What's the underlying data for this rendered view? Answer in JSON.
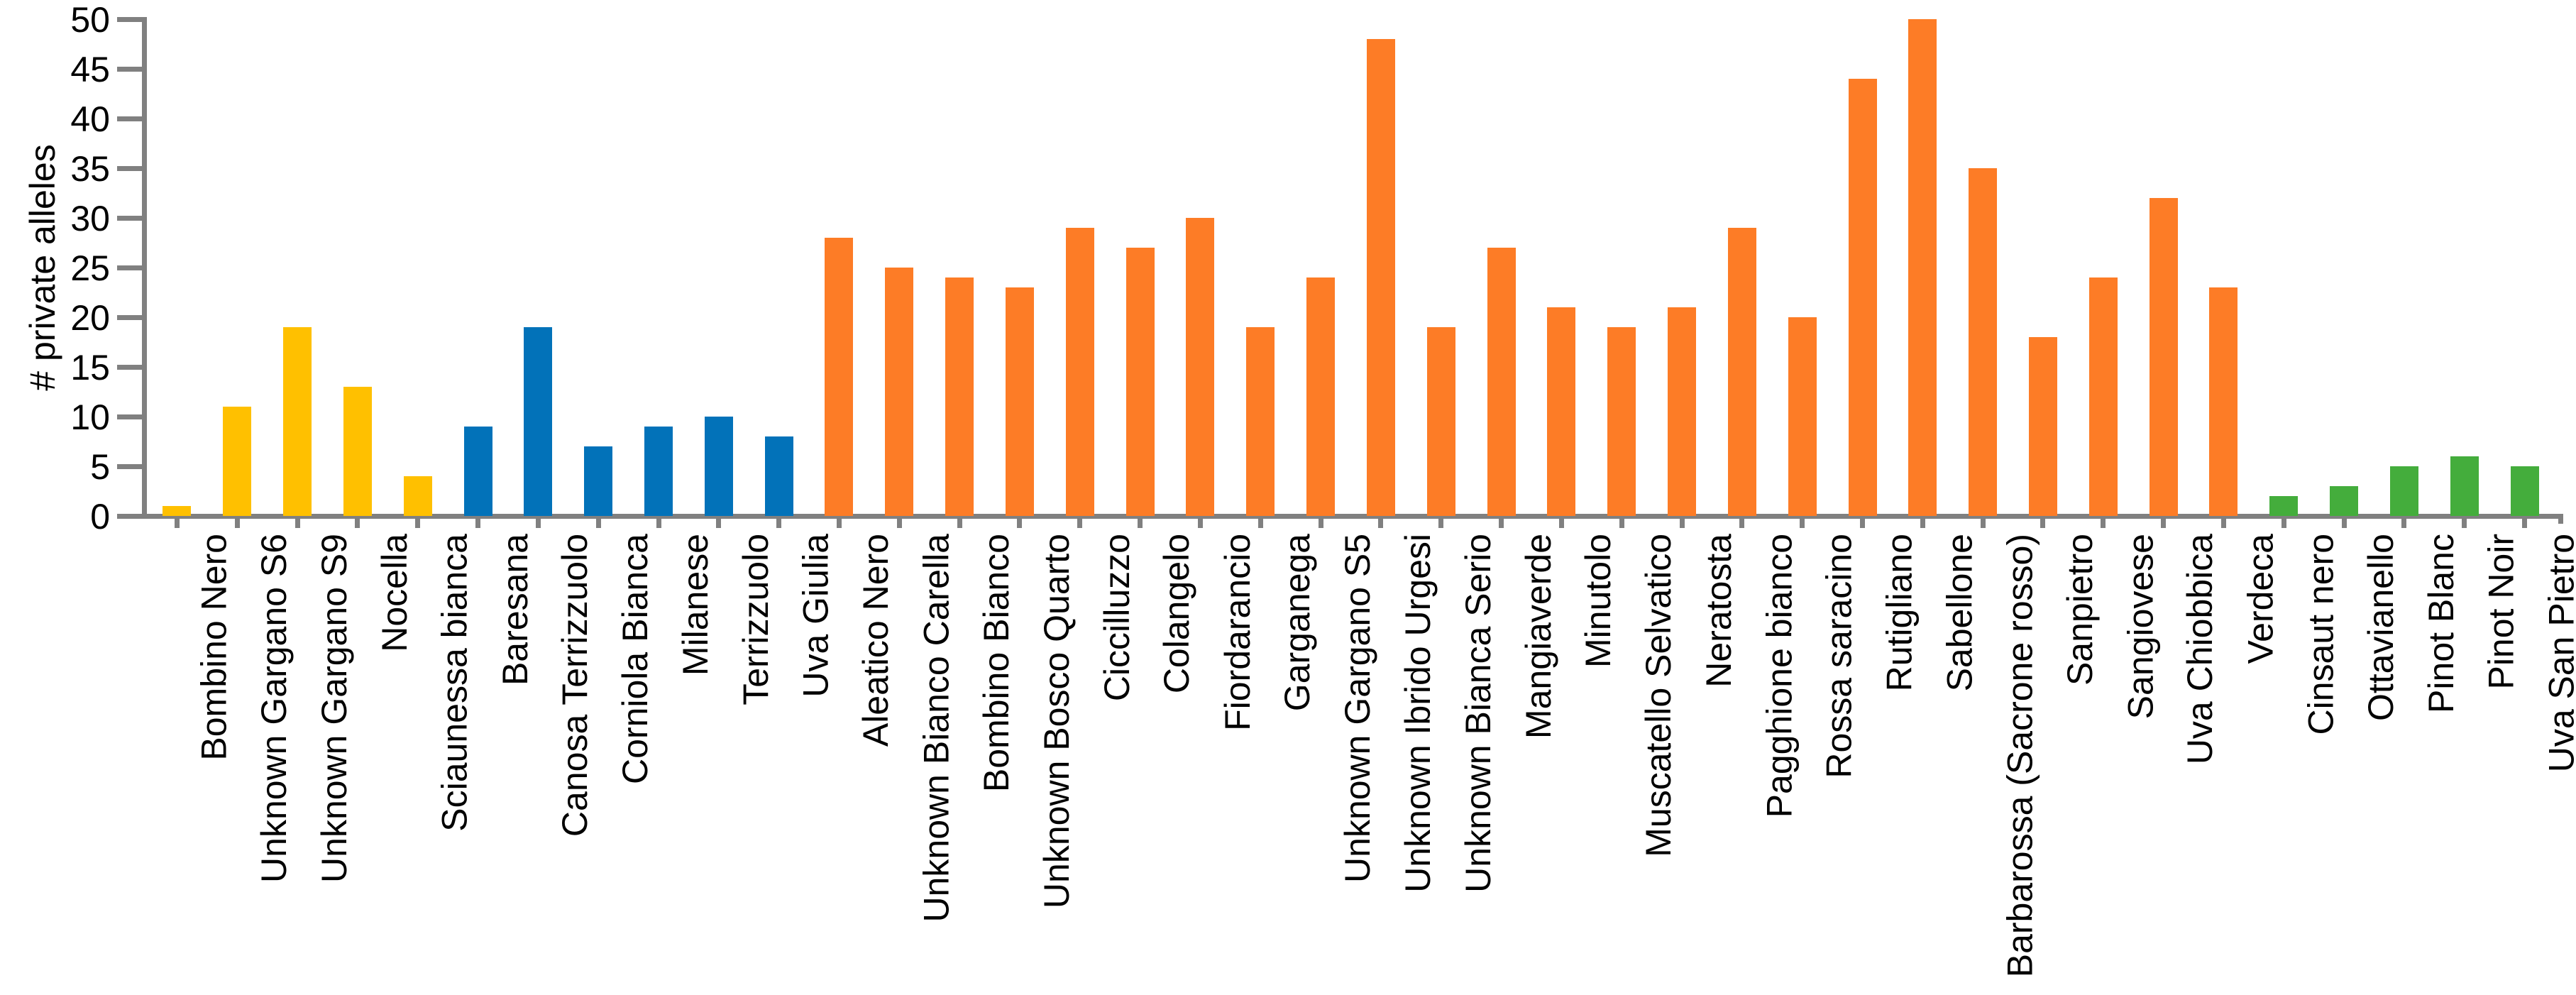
{
  "chart_data": {
    "type": "bar",
    "title": "",
    "xlabel": "",
    "ylabel": "# private alleles",
    "ylim": [
      0,
      50
    ],
    "yticks": [
      0,
      5,
      10,
      15,
      20,
      25,
      30,
      35,
      40,
      45,
      50
    ],
    "grid": false,
    "legend": null,
    "axis_color": "#808080",
    "group_colors": {
      "yellow": "#FFC000",
      "blue": "#0272B9",
      "orange": "#FD7C26",
      "green": "#44AD3C"
    },
    "bars": [
      {
        "label": "Bombino Nero",
        "value": 1,
        "group": "yellow"
      },
      {
        "label": "Unknown Gargano S6",
        "value": 11,
        "group": "yellow"
      },
      {
        "label": "Unknown Gargano S9",
        "value": 19,
        "group": "yellow"
      },
      {
        "label": "Nocella",
        "value": 13,
        "group": "yellow"
      },
      {
        "label": "Sciaunessa bianca",
        "value": 4,
        "group": "yellow"
      },
      {
        "label": "Baresana",
        "value": 9,
        "group": "blue"
      },
      {
        "label": "Canosa Terrizzuolo",
        "value": 19,
        "group": "blue"
      },
      {
        "label": "Corniola Bianca",
        "value": 7,
        "group": "blue"
      },
      {
        "label": "Milanese",
        "value": 9,
        "group": "blue"
      },
      {
        "label": "Terrizzuolo",
        "value": 10,
        "group": "blue"
      },
      {
        "label": "Uva Giulia",
        "value": 8,
        "group": "blue"
      },
      {
        "label": "Aleatico Nero",
        "value": 28,
        "group": "orange"
      },
      {
        "label": "Unknown Bianco Carella",
        "value": 25,
        "group": "orange"
      },
      {
        "label": "Bombino Bianco",
        "value": 24,
        "group": "orange"
      },
      {
        "label": "Unknown Bosco Quarto",
        "value": 23,
        "group": "orange"
      },
      {
        "label": "Ciccilluzzo",
        "value": 29,
        "group": "orange"
      },
      {
        "label": "Colangelo",
        "value": 27,
        "group": "orange"
      },
      {
        "label": "Fiordarancio",
        "value": 30,
        "group": "orange"
      },
      {
        "label": "Garganega",
        "value": 19,
        "group": "orange"
      },
      {
        "label": "Unknown Gargano S5",
        "value": 24,
        "group": "orange"
      },
      {
        "label": "Unknown Ibrido Urgesi",
        "value": 48,
        "group": "orange"
      },
      {
        "label": "Unknown Bianca Serio",
        "value": 19,
        "group": "orange"
      },
      {
        "label": "Mangiaverde",
        "value": 27,
        "group": "orange"
      },
      {
        "label": "Minutolo",
        "value": 21,
        "group": "orange"
      },
      {
        "label": "Muscatello Selvatico",
        "value": 19,
        "group": "orange"
      },
      {
        "label": "Neratosta",
        "value": 21,
        "group": "orange"
      },
      {
        "label": "Pagghione bianco",
        "value": 29,
        "group": "orange"
      },
      {
        "label": "Rossa saracino",
        "value": 20,
        "group": "orange"
      },
      {
        "label": "Rutigliano",
        "value": 44,
        "group": "orange"
      },
      {
        "label": "Sabellone",
        "value": 50,
        "group": "orange"
      },
      {
        "label": "Barbarossa (Sacrone rosso)",
        "value": 35,
        "group": "orange"
      },
      {
        "label": "Sanpietro",
        "value": 18,
        "group": "orange"
      },
      {
        "label": "Sangiovese",
        "value": 24,
        "group": "orange"
      },
      {
        "label": "Uva Chiobbica",
        "value": 32,
        "group": "orange"
      },
      {
        "label": "Verdeca",
        "value": 23,
        "group": "orange"
      },
      {
        "label": "Cinsaut nero",
        "value": 2,
        "group": "green"
      },
      {
        "label": "Ottavianello",
        "value": 3,
        "group": "green"
      },
      {
        "label": "Pinot Blanc",
        "value": 5,
        "group": "green"
      },
      {
        "label": "Pinot Noir",
        "value": 6,
        "group": "green"
      },
      {
        "label": "Uva San Pietro",
        "value": 5,
        "group": "green"
      }
    ]
  }
}
